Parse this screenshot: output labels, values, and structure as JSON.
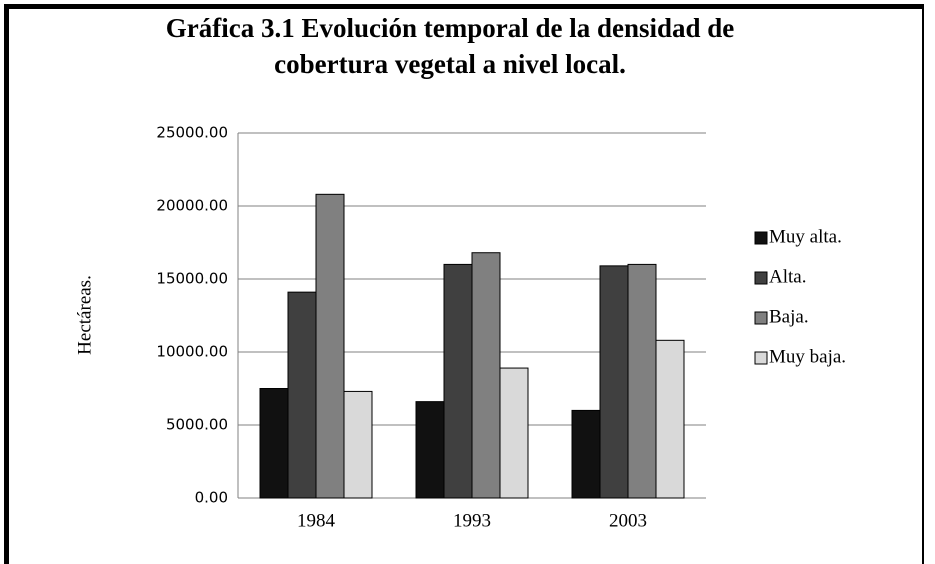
{
  "chart_data": {
    "type": "bar",
    "title": "Gráfica 3.1 Evolución temporal de la densidad de cobertura vegetal a nivel local.",
    "y_label": "Hectáreas.",
    "categories": [
      "1984",
      "1993",
      "2003"
    ],
    "series": [
      {
        "name": "Muy alta.",
        "color": "#111111",
        "values": [
          7500,
          6600,
          6000
        ]
      },
      {
        "name": "Alta.",
        "color": "#404040",
        "values": [
          14100,
          16000,
          15900
        ]
      },
      {
        "name": "Baja.",
        "color": "#808080",
        "values": [
          20800,
          16800,
          16000
        ]
      },
      {
        "name": "Muy baja.",
        "color": "#d9d9d9",
        "values": [
          7300,
          8900,
          10800
        ]
      }
    ],
    "ylim": [
      0,
      25000
    ],
    "yticks": [
      {
        "value": 0,
        "label": "0.00"
      },
      {
        "value": 5000,
        "label": "5000.00"
      },
      {
        "value": 10000,
        "label": "10000.00"
      },
      {
        "value": 15000,
        "label": "15000.00"
      },
      {
        "value": 20000,
        "label": "20000.00"
      },
      {
        "value": 25000,
        "label": "25000.00"
      }
    ],
    "grid": true,
    "legend": "right"
  }
}
